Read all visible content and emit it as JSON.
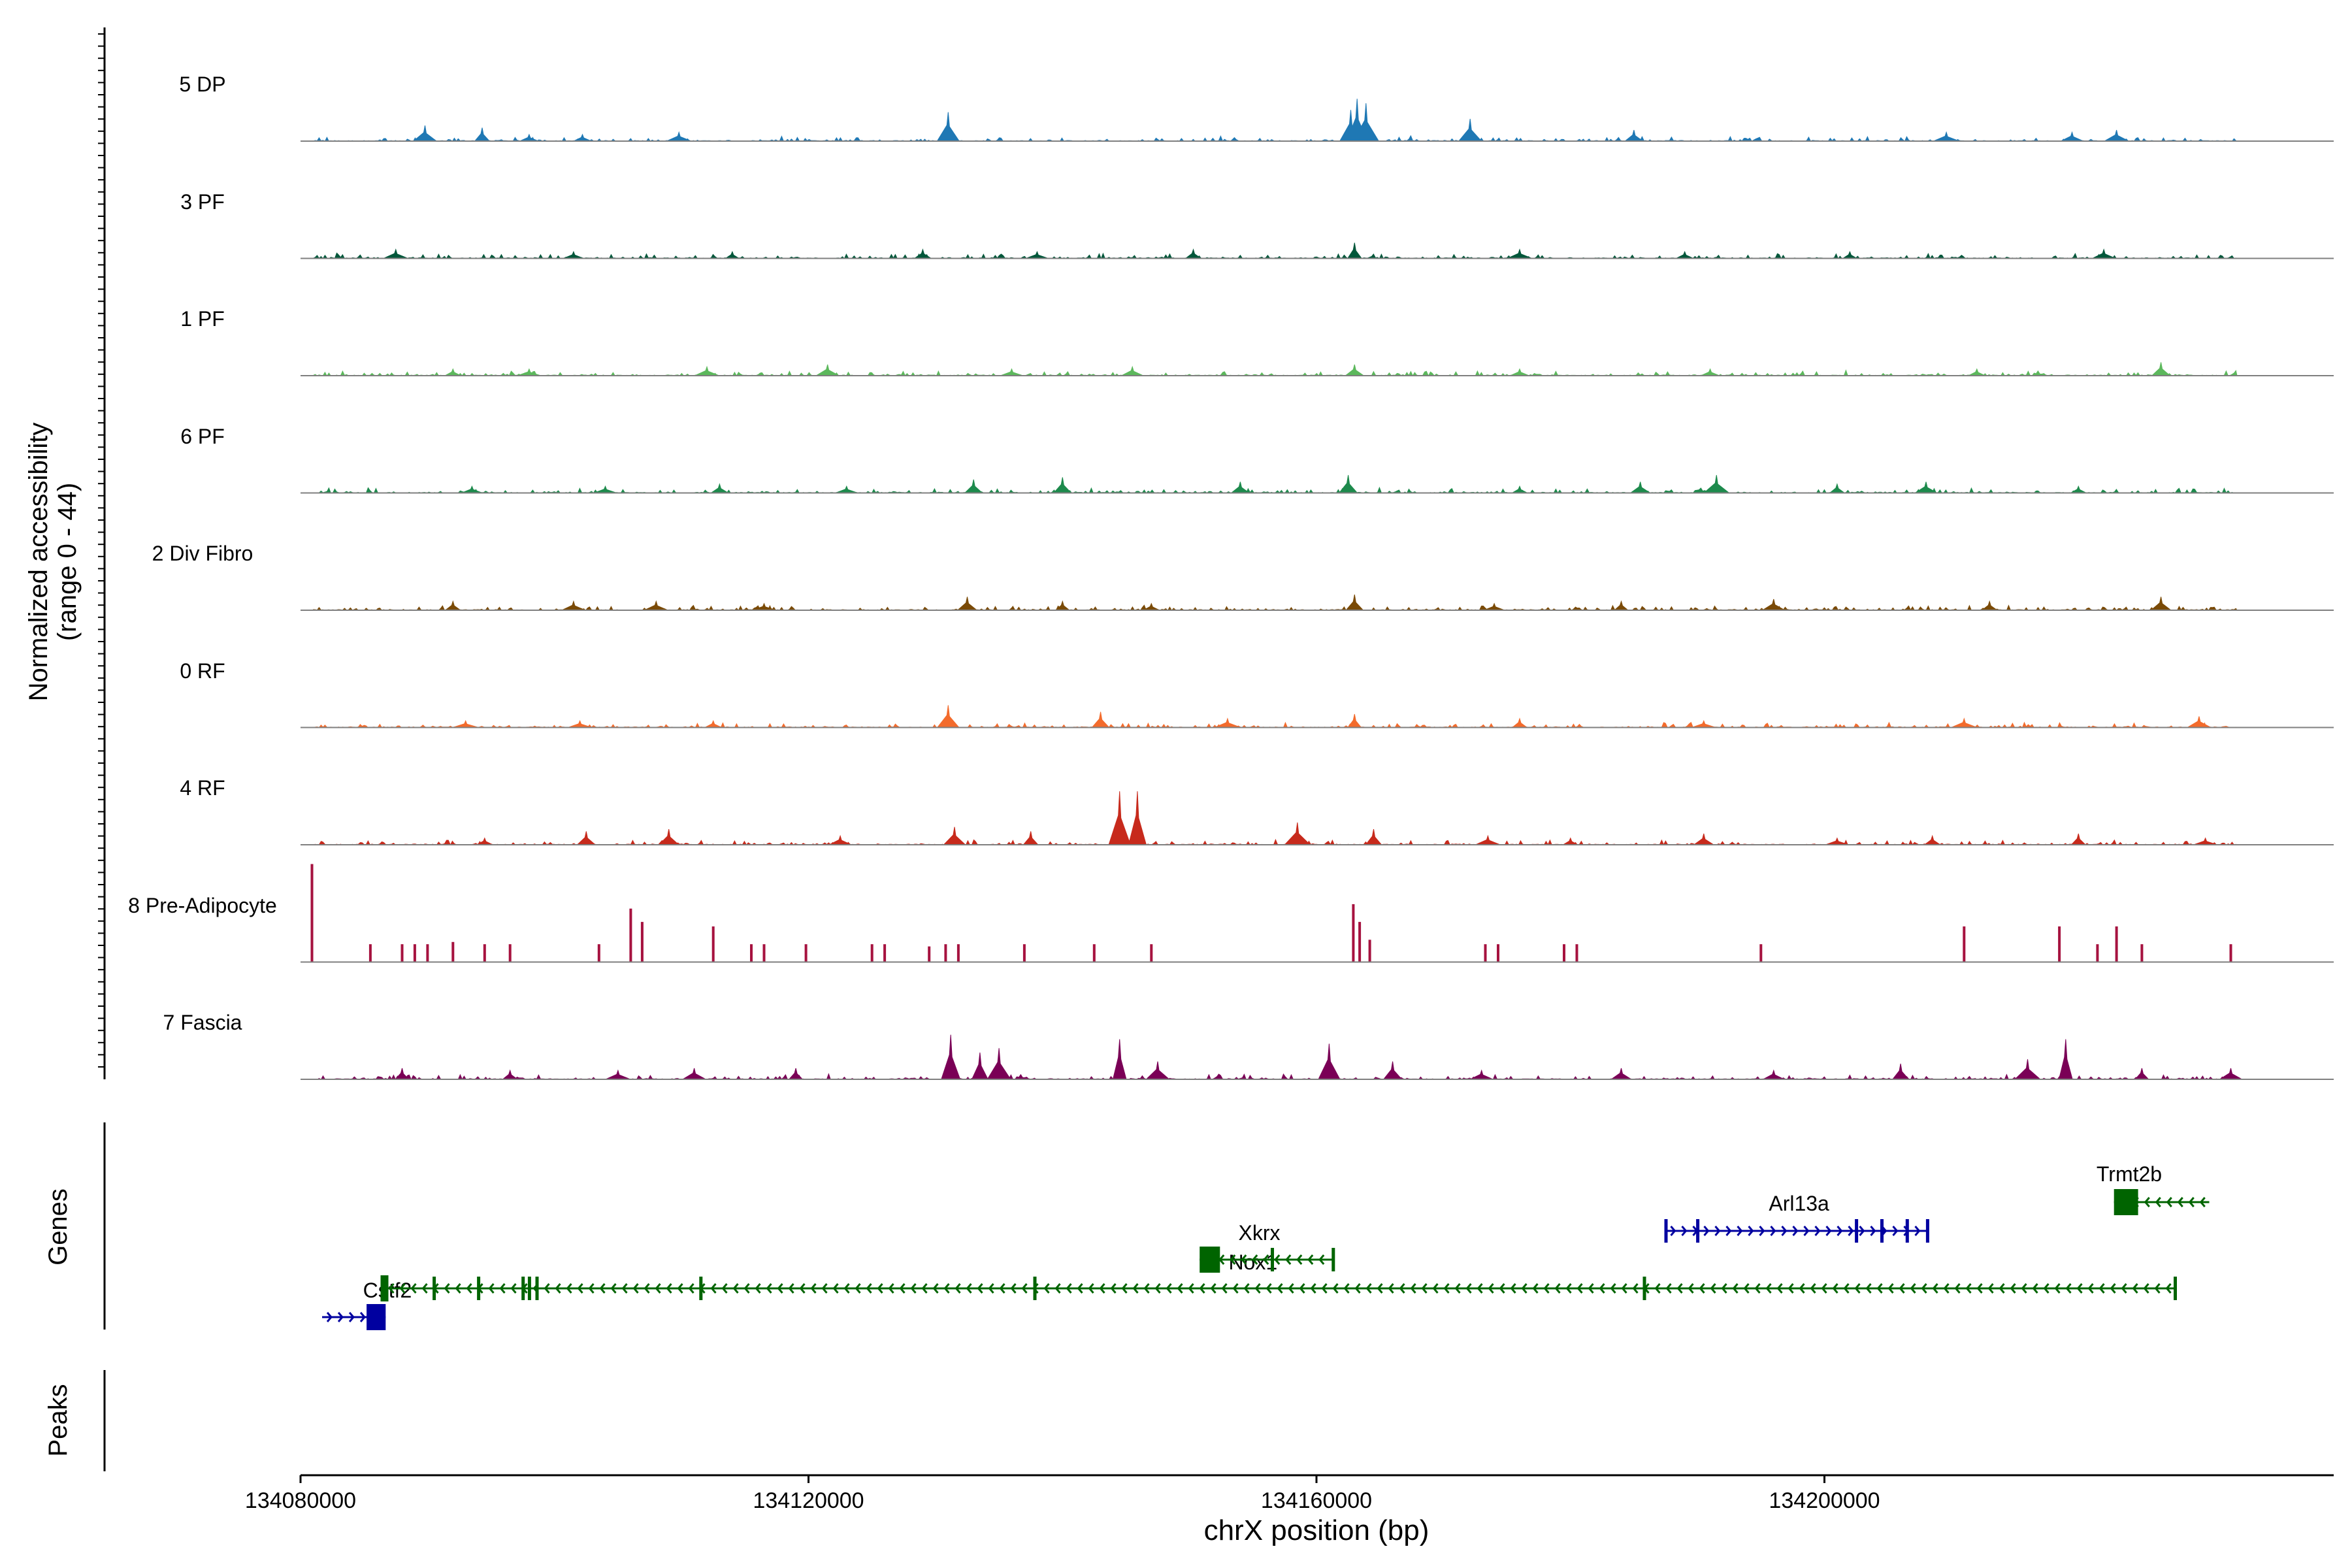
{
  "chart_data": {
    "type": "area",
    "title": "",
    "xlabel": "chrX position (bp)",
    "ylabel_line1": "Normalized accessibility",
    "ylabel_line2": "(range 0 - 44)",
    "xlim": [
      134080000,
      134240000
    ],
    "xticks": [
      134080000,
      134120000,
      134160000,
      134200000
    ],
    "tick_labels": [
      "134080000",
      "134120000",
      "134160000",
      "134200000"
    ],
    "ylim": [
      0,
      44
    ],
    "panel_labels": {
      "genes": "Genes",
      "peaks": "Peaks"
    },
    "tracks": [
      {
        "name": "5 DP",
        "color": "#1f78b4",
        "peaks": [
          [
            134089800,
            7
          ],
          [
            134094300,
            6
          ],
          [
            134098000,
            3
          ],
          [
            134102200,
            3
          ],
          [
            134109800,
            4
          ],
          [
            134131000,
            13
          ],
          [
            134162700,
            14
          ],
          [
            134163200,
            19
          ],
          [
            134163900,
            17
          ],
          [
            134172100,
            10
          ],
          [
            134185000,
            5
          ],
          [
            134209600,
            4
          ],
          [
            134219500,
            4
          ],
          [
            134223000,
            5
          ]
        ]
      },
      {
        "name": "3 PF",
        "color": "#00573a",
        "peaks": [
          [
            134087500,
            4
          ],
          [
            134101500,
            3
          ],
          [
            134114000,
            3
          ],
          [
            134129000,
            4
          ],
          [
            134138000,
            3
          ],
          [
            134150300,
            4
          ],
          [
            134163000,
            7
          ],
          [
            134176000,
            4
          ],
          [
            134189000,
            3
          ],
          [
            134202000,
            3
          ],
          [
            134222000,
            4
          ]
        ]
      },
      {
        "name": "1 PF",
        "color": "#5cb85c",
        "peaks": [
          [
            134092000,
            3
          ],
          [
            134098000,
            3
          ],
          [
            134112000,
            4
          ],
          [
            134121500,
            5
          ],
          [
            134136000,
            3
          ],
          [
            134145500,
            4
          ],
          [
            134163000,
            5
          ],
          [
            134176000,
            3
          ],
          [
            134191000,
            3
          ],
          [
            134212000,
            3
          ],
          [
            134226500,
            6
          ]
        ]
      },
      {
        "name": "6 PF",
        "color": "#1d8a4c",
        "peaks": [
          [
            134093500,
            3
          ],
          [
            134104000,
            3
          ],
          [
            134113000,
            4
          ],
          [
            134123000,
            3
          ],
          [
            134133000,
            6
          ],
          [
            134140000,
            7
          ],
          [
            134154000,
            5
          ],
          [
            134162500,
            8
          ],
          [
            134176000,
            3
          ],
          [
            134185500,
            5
          ],
          [
            134191500,
            8
          ],
          [
            134201000,
            4
          ],
          [
            134208000,
            5
          ],
          [
            134220000,
            3
          ]
        ]
      },
      {
        "name": "2 Div Fibro",
        "color": "#7a4a06",
        "peaks": [
          [
            134092000,
            4
          ],
          [
            134101500,
            4
          ],
          [
            134108000,
            4
          ],
          [
            134116500,
            3
          ],
          [
            134132500,
            6
          ],
          [
            134140000,
            4
          ],
          [
            134147000,
            3
          ],
          [
            134163000,
            7
          ],
          [
            134174000,
            3
          ],
          [
            134184000,
            4
          ],
          [
            134196000,
            5
          ],
          [
            134213000,
            4
          ],
          [
            134226500,
            6
          ]
        ]
      },
      {
        "name": "0 RF",
        "color": "#f36b2c",
        "peaks": [
          [
            134093000,
            3
          ],
          [
            134102000,
            3
          ],
          [
            134112500,
            3
          ],
          [
            134131000,
            10
          ],
          [
            134143000,
            7
          ],
          [
            134153000,
            4
          ],
          [
            134163000,
            6
          ],
          [
            134176000,
            4
          ],
          [
            134190500,
            3
          ],
          [
            134211000,
            4
          ],
          [
            134229500,
            5
          ]
        ]
      },
      {
        "name": "4 RF",
        "color": "#c72a1c",
        "peaks": [
          [
            134094500,
            3
          ],
          [
            134102500,
            6
          ],
          [
            134109000,
            7
          ],
          [
            134122500,
            4
          ],
          [
            134131500,
            8
          ],
          [
            134137500,
            6
          ],
          [
            134144500,
            24
          ],
          [
            134145900,
            24
          ],
          [
            134158500,
            10
          ],
          [
            134164500,
            7
          ],
          [
            134173500,
            4
          ],
          [
            134180000,
            3
          ],
          [
            134190500,
            5
          ],
          [
            134201000,
            3
          ],
          [
            134208500,
            4
          ],
          [
            134220000,
            5
          ],
          [
            134230000,
            3
          ]
        ]
      },
      {
        "name": "8 Pre-Adipocyte",
        "color": "#a6123f",
        "peaks": [
          [
            134080900,
            44
          ],
          [
            134085500,
            8
          ],
          [
            134088000,
            8
          ],
          [
            134089000,
            8
          ],
          [
            134090000,
            8
          ],
          [
            134092000,
            9
          ],
          [
            134094500,
            8
          ],
          [
            134096500,
            8
          ],
          [
            134103500,
            8
          ],
          [
            134106000,
            24
          ],
          [
            134106900,
            18
          ],
          [
            134112500,
            16
          ],
          [
            134115500,
            8
          ],
          [
            134116500,
            8
          ],
          [
            134119800,
            8
          ],
          [
            134125000,
            8
          ],
          [
            134126000,
            8
          ],
          [
            134129500,
            7
          ],
          [
            134130800,
            8
          ],
          [
            134131800,
            8
          ],
          [
            134137000,
            8
          ],
          [
            134142500,
            8
          ],
          [
            134147000,
            8
          ],
          [
            134162900,
            26
          ],
          [
            134163400,
            18
          ],
          [
            134164200,
            10
          ],
          [
            134173300,
            8
          ],
          [
            134174300,
            8
          ],
          [
            134179500,
            8
          ],
          [
            134180500,
            8
          ],
          [
            134195000,
            8
          ],
          [
            134211000,
            16
          ],
          [
            134218500,
            16
          ],
          [
            134221500,
            8
          ],
          [
            134223000,
            16
          ],
          [
            134225000,
            8
          ],
          [
            134232000,
            8
          ]
        ]
      },
      {
        "name": "7 Fascia",
        "color": "#7a0056",
        "peaks": [
          [
            134088000,
            5
          ],
          [
            134096500,
            4
          ],
          [
            134105000,
            4
          ],
          [
            134111000,
            5
          ],
          [
            134119000,
            5
          ],
          [
            134131200,
            20
          ],
          [
            134133500,
            12
          ],
          [
            134135000,
            14
          ],
          [
            134144500,
            18
          ],
          [
            134147500,
            8
          ],
          [
            134161000,
            16
          ],
          [
            134166000,
            8
          ],
          [
            134173000,
            4
          ],
          [
            134184000,
            5
          ],
          [
            134196000,
            4
          ],
          [
            134206000,
            7
          ],
          [
            134216000,
            9
          ],
          [
            134219000,
            18
          ],
          [
            134225000,
            5
          ],
          [
            134232000,
            5
          ]
        ]
      }
    ],
    "genes": [
      {
        "name": "Cstf2",
        "strand": "+",
        "start": 134081700,
        "end": 134086700,
        "color": "#0000a0",
        "row": 3
      },
      {
        "name": "Nox1",
        "strand": "-",
        "start": 134086300,
        "end": 134227700,
        "color": "#006400",
        "row": 2
      },
      {
        "name": "Xkrx",
        "strand": "-",
        "start": 134150800,
        "end": 134161400,
        "color": "#006400",
        "row": 1
      },
      {
        "name": "Arl13a",
        "strand": "+",
        "start": 134187500,
        "end": 134208200,
        "color": "#0000a0",
        "row": 0
      },
      {
        "name": "Trmt2b",
        "strand": "-",
        "start": 134222800,
        "end": 134230300,
        "color": "#006400",
        "row": -1
      }
    ]
  }
}
